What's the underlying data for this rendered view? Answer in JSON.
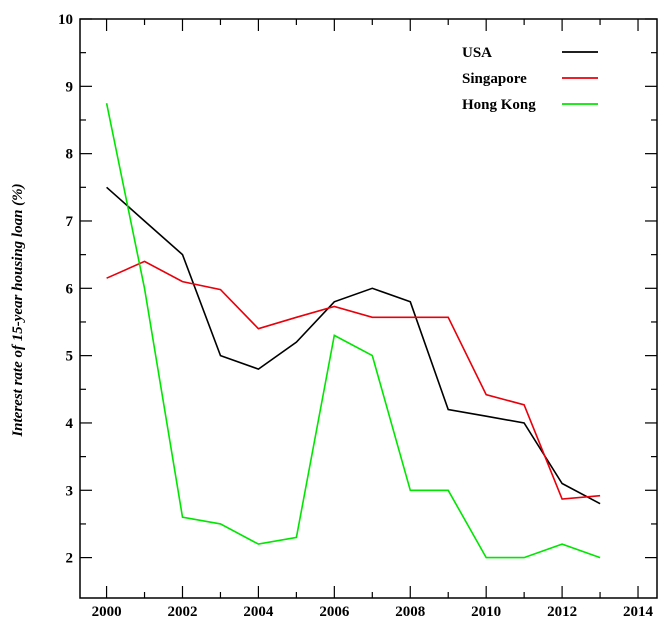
{
  "chart_data": {
    "type": "line",
    "title": "",
    "xlabel": "",
    "ylabel": "Interest rate of 15-year housing loan (%)",
    "xlim": [
      1999.3,
      2014.5
    ],
    "ylim": [
      1.4,
      10
    ],
    "x_ticks": [
      2000,
      2002,
      2004,
      2006,
      2008,
      2010,
      2012,
      2014
    ],
    "y_ticks": [
      2,
      3,
      4,
      5,
      6,
      7,
      8,
      9,
      10
    ],
    "grid": false,
    "legend_position": "top-right",
    "x": [
      2000,
      2001,
      2002,
      2003,
      2004,
      2005,
      2006,
      2007,
      2008,
      2009,
      2010,
      2011,
      2012,
      2013
    ],
    "series": [
      {
        "name": "USA",
        "color": "#000000",
        "values": [
          7.5,
          7.0,
          6.5,
          5.0,
          4.8,
          5.2,
          5.8,
          6.0,
          5.8,
          4.2,
          4.1,
          4.0,
          3.1,
          2.8
        ]
      },
      {
        "name": "Singapore",
        "color": "#e8000b",
        "values": [
          6.15,
          6.4,
          6.1,
          5.98,
          5.4,
          5.57,
          5.73,
          5.57,
          5.57,
          5.57,
          4.42,
          4.27,
          2.87,
          2.92
        ]
      },
      {
        "name": "Hong Kong",
        "color": "#00e600",
        "values": [
          8.75,
          6.0,
          2.6,
          2.5,
          2.2,
          2.3,
          5.3,
          5.0,
          3.0,
          3.0,
          2.0,
          2.0,
          2.2,
          2.0
        ]
      }
    ]
  }
}
